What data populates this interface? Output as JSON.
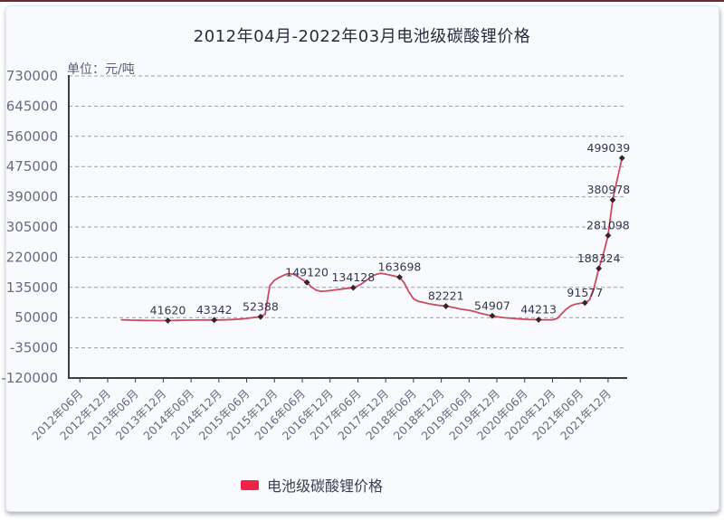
{
  "chart_data": {
    "type": "line",
    "title": "2012年04月-2022年03月电池级碳酸锂价格",
    "unit_label": "单位：元/吨",
    "legend_label": "电池级碳酸锂价格",
    "legend_color": "#ed2448",
    "line_color": "#cc4b5f",
    "marker_color": "#35222e",
    "data_label_color": "#35354e",
    "axis_color": "#3b3b45",
    "grid_color": "#97a0a8",
    "tick_label_color": "#6a6a80",
    "y_axis": {
      "min": -120000,
      "max": 730000,
      "step": 85000,
      "ticks": [
        730000,
        645000,
        560000,
        475000,
        390000,
        305000,
        220000,
        135000,
        50000,
        -35000,
        -120000
      ]
    },
    "x_axis": {
      "tick_labels": [
        "2012年06月",
        "2012年12月",
        "2013年06月",
        "2013年12月",
        "2014年06月",
        "2014年12月",
        "2015年06月",
        "2015年12月",
        "2016年06月",
        "2016年12月",
        "2017年06月",
        "2017年12月",
        "2018年06月",
        "2018年12月",
        "2019年06月",
        "2019年12月",
        "2020年06月",
        "2020年12月",
        "2021年06月",
        "2021年12月"
      ],
      "months_total": 120,
      "first_tick_month_index": 2,
      "tick_every_months": 6
    },
    "series": {
      "name": "电池级碳酸锂价格",
      "x_start_offset_months": 11,
      "values": [
        43800,
        43400,
        43000,
        42600,
        42300,
        42000,
        41850,
        41750,
        41680,
        41640,
        41620,
        41900,
        42250,
        42600,
        42850,
        43000,
        43120,
        43200,
        43260,
        43310,
        43342,
        43500,
        43750,
        44100,
        44600,
        45300,
        46300,
        47600,
        49200,
        50900,
        52388,
        60000,
        140000,
        155000,
        163000,
        169000,
        174000,
        172500,
        166000,
        157000,
        149120,
        136000,
        127000,
        124000,
        124500,
        126000,
        127800,
        129500,
        131200,
        132800,
        134128,
        139000,
        147000,
        157000,
        166000,
        172000,
        174500,
        172500,
        169500,
        166500,
        163698,
        148000,
        122000,
        103000,
        96000,
        93000,
        90000,
        87500,
        85500,
        83500,
        82221,
        80000,
        77500,
        74500,
        72500,
        70500,
        67500,
        64000,
        60500,
        57500,
        54907,
        52500,
        50500,
        49200,
        48200,
        47200,
        46200,
        45300,
        44700,
        44350,
        44213,
        43900,
        43600,
        43800,
        47500,
        61000,
        74000,
        83500,
        88000,
        90200,
        91577,
        99500,
        136000,
        188324,
        230000,
        281098,
        380978,
        441000,
        499039
      ],
      "labeled_indices": [
        10,
        20,
        30,
        40,
        50,
        60,
        70,
        80,
        90,
        100,
        103,
        105,
        106,
        108
      ],
      "labeled_values": [
        41620,
        43342,
        52388,
        149120,
        134128,
        163698,
        82221,
        54907,
        44213,
        91577,
        188324,
        281098,
        380978,
        499039
      ]
    },
    "grid": "horizontal-dashed",
    "legend_position": "bottom-center"
  }
}
